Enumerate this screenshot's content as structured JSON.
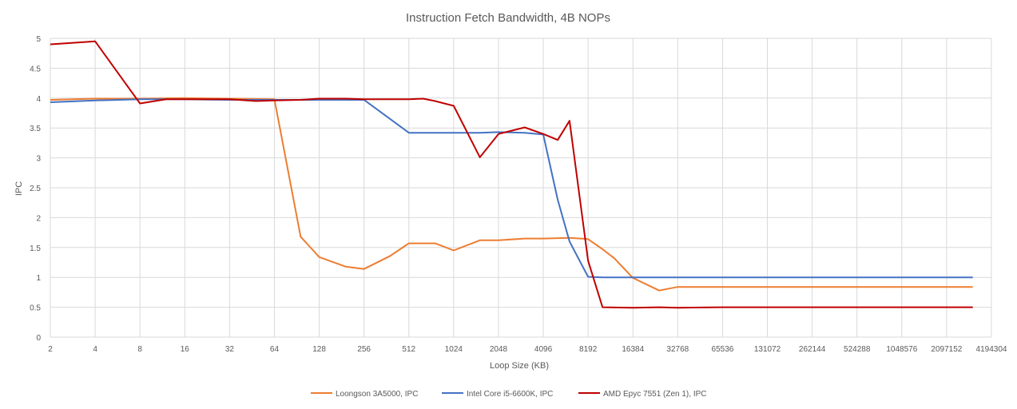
{
  "chart_data": {
    "type": "line",
    "title": "Instruction Fetch Bandwidth, 4B NOPs",
    "xlabel": "Loop Size (KB)",
    "ylabel": "IPC",
    "x_scale": "log2",
    "x_ticks": [
      "2",
      "4",
      "8",
      "16",
      "32",
      "64",
      "128",
      "256",
      "512",
      "1024",
      "2048",
      "4096",
      "8192",
      "16384",
      "32768",
      "65536",
      "131072",
      "262144",
      "524288",
      "1048576",
      "2097152",
      "4194304"
    ],
    "y_ticks": [
      "0",
      "0.5",
      "1",
      "1.5",
      "2",
      "2.5",
      "3",
      "3.5",
      "4",
      "4.5",
      "5"
    ],
    "ylim": [
      0,
      5
    ],
    "grid": true,
    "legend_position": "bottom",
    "series": [
      {
        "name": "Loongson 3A5000, IPC",
        "color": "#ED7D31",
        "points": [
          [
            2,
            3.97
          ],
          [
            4,
            3.99
          ],
          [
            8,
            3.99
          ],
          [
            16,
            4.0
          ],
          [
            32,
            3.99
          ],
          [
            64,
            3.98
          ],
          [
            96,
            1.68
          ],
          [
            128,
            1.34
          ],
          [
            192,
            1.18
          ],
          [
            256,
            1.14
          ],
          [
            384,
            1.36
          ],
          [
            512,
            1.57
          ],
          [
            640,
            1.57
          ],
          [
            768,
            1.57
          ],
          [
            1024,
            1.45
          ],
          [
            1536,
            1.62
          ],
          [
            2048,
            1.62
          ],
          [
            3072,
            1.65
          ],
          [
            4096,
            1.65
          ],
          [
            6144,
            1.66
          ],
          [
            8192,
            1.64
          ],
          [
            10240,
            1.47
          ],
          [
            12288,
            1.32
          ],
          [
            16384,
            0.99
          ],
          [
            24576,
            0.78
          ],
          [
            32768,
            0.84
          ],
          [
            65536,
            0.84
          ],
          [
            131072,
            0.84
          ],
          [
            262144,
            0.84
          ],
          [
            524288,
            0.84
          ],
          [
            1048576,
            0.84
          ],
          [
            2097152,
            0.84
          ],
          [
            3145728,
            0.84
          ]
        ]
      },
      {
        "name": "Intel Core i5-6600K, IPC",
        "color": "#4472C4",
        "points": [
          [
            2,
            3.93
          ],
          [
            4,
            3.96
          ],
          [
            8,
            3.98
          ],
          [
            16,
            3.98
          ],
          [
            32,
            3.97
          ],
          [
            64,
            3.97
          ],
          [
            128,
            3.97
          ],
          [
            256,
            3.97
          ],
          [
            512,
            3.42
          ],
          [
            768,
            3.42
          ],
          [
            1024,
            3.42
          ],
          [
            1536,
            3.42
          ],
          [
            2048,
            3.43
          ],
          [
            3072,
            3.42
          ],
          [
            4096,
            3.39
          ],
          [
            5120,
            2.3
          ],
          [
            6144,
            1.6
          ],
          [
            8192,
            1.01
          ],
          [
            10240,
            1.0
          ],
          [
            16384,
            1.0
          ],
          [
            32768,
            1.0
          ],
          [
            65536,
            1.0
          ],
          [
            131072,
            1.0
          ],
          [
            262144,
            1.0
          ],
          [
            524288,
            1.0
          ],
          [
            1048576,
            1.0
          ],
          [
            2097152,
            1.0
          ],
          [
            3145728,
            1.0
          ]
        ]
      },
      {
        "name": "AMD Epyc 7551 (Zen 1), IPC",
        "color": "#C00000",
        "points": [
          [
            2,
            4.9
          ],
          [
            4,
            4.95
          ],
          [
            8,
            3.91
          ],
          [
            12,
            3.98
          ],
          [
            16,
            3.98
          ],
          [
            24,
            3.98
          ],
          [
            32,
            3.98
          ],
          [
            48,
            3.95
          ],
          [
            64,
            3.96
          ],
          [
            96,
            3.97
          ],
          [
            128,
            3.99
          ],
          [
            192,
            3.99
          ],
          [
            256,
            3.98
          ],
          [
            384,
            3.98
          ],
          [
            512,
            3.98
          ],
          [
            640,
            3.99
          ],
          [
            768,
            3.95
          ],
          [
            1024,
            3.87
          ],
          [
            1536,
            3.01
          ],
          [
            2048,
            3.4
          ],
          [
            3072,
            3.51
          ],
          [
            4096,
            3.4
          ],
          [
            5120,
            3.3
          ],
          [
            6144,
            3.62
          ],
          [
            8192,
            1.28
          ],
          [
            10240,
            0.5
          ],
          [
            16384,
            0.49
          ],
          [
            24576,
            0.5
          ],
          [
            32768,
            0.49
          ],
          [
            65536,
            0.5
          ],
          [
            131072,
            0.5
          ],
          [
            262144,
            0.5
          ],
          [
            524288,
            0.5
          ],
          [
            1048576,
            0.5
          ],
          [
            2097152,
            0.5
          ],
          [
            3145728,
            0.5
          ]
        ]
      }
    ]
  }
}
